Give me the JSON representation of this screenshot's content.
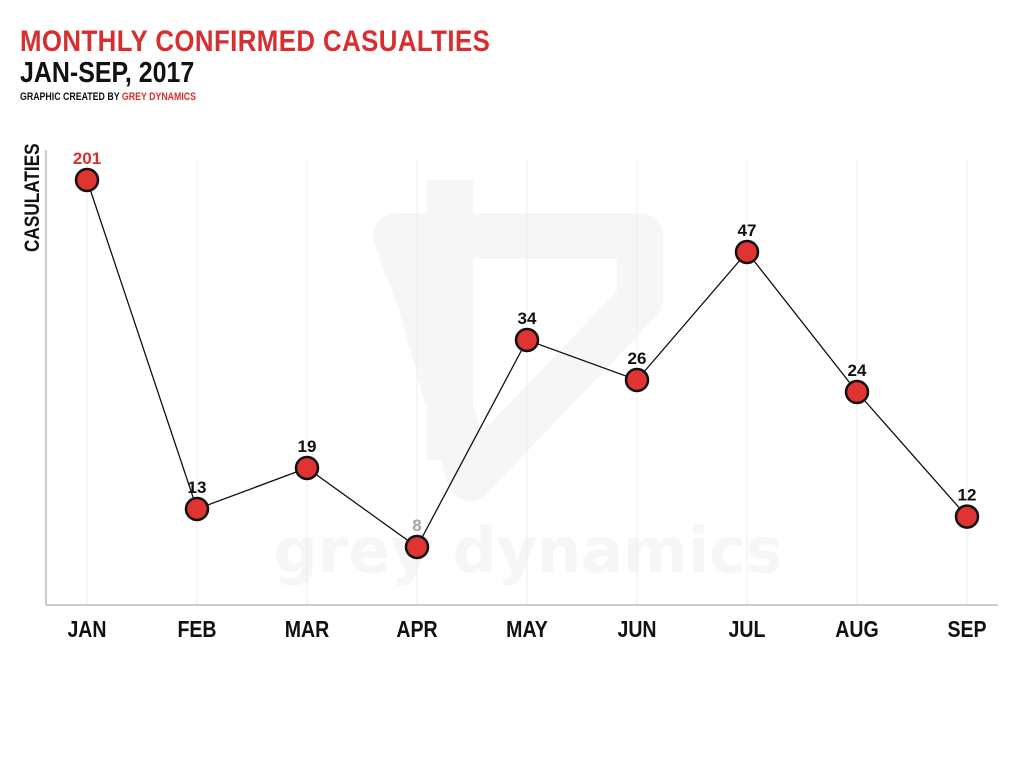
{
  "header": {
    "title": "MONTHLY CONFIRMED CASUALTIES",
    "subtitle": "JAN-SEP, 2017",
    "credit_prefix": "GRAPHIC CREATED BY",
    "credit_brand": "GREY DYNAMICS"
  },
  "watermark": {
    "text": "grey dynamics",
    "icon": "grey-dynamics-logo-icon"
  },
  "colors": {
    "accent": "#d72f30",
    "marker_fill": "#e03433",
    "marker_stroke": "#111111",
    "text": "#111111",
    "muted_label": "#a6a6a6",
    "gridline": "#eeeeee",
    "watermark": "#f7f7f7"
  },
  "chart_data": {
    "type": "line",
    "title": "MONTHLY CONFIRMED CASUALTIES",
    "subtitle": "JAN-SEP, 2017",
    "ylabel": "CASULATIES",
    "xlabel": "",
    "categories": [
      "JAN",
      "FEB",
      "MAR",
      "APR",
      "MAY",
      "JUN",
      "JUL",
      "AUG",
      "SEP"
    ],
    "series": [
      {
        "values": [
          201,
          13,
          19,
          8,
          34,
          26,
          47,
          24,
          12
        ]
      }
    ],
    "data_label_colors": [
      "#d72f30",
      "#111111",
      "#111111",
      "#a6a6a6",
      "#111111",
      "#111111",
      "#111111",
      "#111111",
      "#111111"
    ],
    "y_axis_scale": "nonlinear",
    "grid": "vertical-light",
    "legend": "none"
  }
}
